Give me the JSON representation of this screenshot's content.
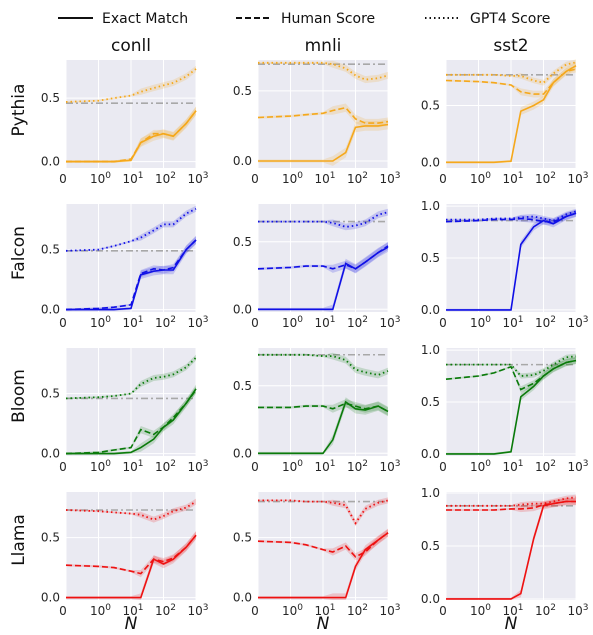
{
  "legend": {
    "exact": "Exact Match",
    "human": "Human Score",
    "gpt4": "GPT4 Score"
  },
  "columns": [
    "conll",
    "mnli",
    "sst2"
  ],
  "rows": [
    "Pythia",
    "Falcon",
    "Bloom",
    "Llama"
  ],
  "xlabel": "N",
  "colors": {
    "Pythia": "#f5a81c",
    "Falcon": "#1010e6",
    "Bloom": "#0a7a0a",
    "Llama": "#ee1111",
    "reference": "#a8a8a8",
    "plot_bg": "#eaeaf2",
    "grid": "#ffffff"
  },
  "chart_data": {
    "type": "line",
    "x": [
      0,
      1,
      3,
      10,
      20,
      50,
      100,
      200,
      500,
      1000
    ],
    "x_scale": "symlog",
    "x_ticks": [
      "0",
      "10^0",
      "10^1",
      "10^2",
      "10^3"
    ],
    "panels": [
      {
        "row": "Pythia",
        "col": "conll",
        "ylim": [
          -0.05,
          0.8
        ],
        "yticks": [
          "0.0",
          "0.5"
        ],
        "ref": 0.46,
        "exact": [
          0.0,
          0.0,
          0.0,
          0.01,
          0.15,
          0.2,
          0.22,
          0.2,
          0.3,
          0.4
        ],
        "human": [
          0.0,
          0.0,
          0.0,
          0.02,
          0.15,
          0.22,
          0.22,
          0.2,
          0.3,
          0.4
        ],
        "gpt4": [
          0.47,
          0.48,
          0.5,
          0.52,
          0.55,
          0.58,
          0.6,
          0.62,
          0.67,
          0.73
        ]
      },
      {
        "row": "Pythia",
        "col": "mnli",
        "ylim": [
          -0.05,
          0.72
        ],
        "yticks": [
          "0.0",
          "0.5"
        ],
        "ref": 0.69,
        "exact": [
          0.0,
          0.0,
          0.0,
          0.0,
          0.0,
          0.06,
          0.24,
          0.25,
          0.25,
          0.26
        ],
        "human": [
          0.31,
          0.32,
          0.33,
          0.34,
          0.36,
          0.38,
          0.3,
          0.27,
          0.27,
          0.28
        ],
        "gpt4": [
          0.7,
          0.7,
          0.7,
          0.7,
          0.69,
          0.66,
          0.61,
          0.58,
          0.59,
          0.61
        ]
      },
      {
        "row": "Pythia",
        "col": "sst2",
        "ylim": [
          -0.05,
          0.9
        ],
        "yticks": [
          "0.0",
          "0.5"
        ],
        "ref": 0.77,
        "exact": [
          0.0,
          0.0,
          0.0,
          0.01,
          0.45,
          0.5,
          0.55,
          0.7,
          0.8,
          0.85
        ],
        "human": [
          0.72,
          0.71,
          0.7,
          0.68,
          0.62,
          0.6,
          0.6,
          0.7,
          0.8,
          0.82
        ],
        "gpt4": [
          0.77,
          0.77,
          0.77,
          0.76,
          0.76,
          0.72,
          0.7,
          0.78,
          0.86,
          0.88
        ]
      },
      {
        "row": "Falcon",
        "col": "conll",
        "ylim": [
          -0.02,
          0.88
        ],
        "yticks": [
          "0.0",
          "0.5"
        ],
        "ref": 0.49,
        "exact": [
          0.0,
          0.0,
          0.0,
          0.01,
          0.29,
          0.32,
          0.33,
          0.33,
          0.5,
          0.58
        ],
        "human": [
          0.0,
          0.01,
          0.02,
          0.04,
          0.3,
          0.34,
          0.33,
          0.35,
          0.5,
          0.58
        ],
        "gpt4": [
          0.49,
          0.5,
          0.53,
          0.57,
          0.6,
          0.66,
          0.71,
          0.71,
          0.8,
          0.84
        ]
      },
      {
        "row": "Falcon",
        "col": "mnli",
        "ylim": [
          -0.02,
          0.78
        ],
        "yticks": [
          "0.0",
          "0.5"
        ],
        "ref": 0.65,
        "exact": [
          0.0,
          0.0,
          0.0,
          0.0,
          0.0,
          0.34,
          0.3,
          0.35,
          0.42,
          0.46
        ],
        "human": [
          0.3,
          0.31,
          0.32,
          0.32,
          0.3,
          0.33,
          0.3,
          0.35,
          0.42,
          0.47
        ],
        "gpt4": [
          0.65,
          0.65,
          0.65,
          0.65,
          0.64,
          0.61,
          0.62,
          0.64,
          0.7,
          0.72
        ]
      },
      {
        "row": "Falcon",
        "col": "sst2",
        "ylim": [
          -0.02,
          1.02
        ],
        "yticks": [
          "0.0",
          "0.5",
          "1.0"
        ],
        "ref": 0.86,
        "exact": [
          0.0,
          0.0,
          0.0,
          0.0,
          0.63,
          0.8,
          0.86,
          0.83,
          0.9,
          0.93
        ],
        "human": [
          0.85,
          0.86,
          0.87,
          0.87,
          0.88,
          0.87,
          0.85,
          0.85,
          0.9,
          0.93
        ],
        "gpt4": [
          0.87,
          0.87,
          0.88,
          0.88,
          0.89,
          0.9,
          0.88,
          0.86,
          0.92,
          0.95
        ]
      },
      {
        "row": "Bloom",
        "col": "conll",
        "ylim": [
          -0.02,
          0.88
        ],
        "yticks": [
          "0.0",
          "0.5"
        ],
        "ref": 0.46,
        "exact": [
          0.0,
          0.0,
          0.0,
          0.01,
          0.05,
          0.12,
          0.22,
          0.28,
          0.42,
          0.54
        ],
        "human": [
          0.0,
          0.01,
          0.03,
          0.05,
          0.2,
          0.16,
          0.22,
          0.3,
          0.42,
          0.53
        ],
        "gpt4": [
          0.46,
          0.47,
          0.48,
          0.5,
          0.58,
          0.63,
          0.64,
          0.66,
          0.72,
          0.8
        ]
      },
      {
        "row": "Bloom",
        "col": "mnli",
        "ylim": [
          -0.02,
          0.78
        ],
        "yticks": [
          "0.0",
          "0.5"
        ],
        "ref": 0.73,
        "exact": [
          0.0,
          0.0,
          0.0,
          0.0,
          0.1,
          0.38,
          0.33,
          0.32,
          0.35,
          0.31
        ],
        "human": [
          0.34,
          0.34,
          0.35,
          0.35,
          0.33,
          0.37,
          0.35,
          0.33,
          0.35,
          0.31
        ],
        "gpt4": [
          0.73,
          0.73,
          0.73,
          0.72,
          0.72,
          0.69,
          0.62,
          0.6,
          0.58,
          0.61
        ]
      },
      {
        "row": "Bloom",
        "col": "sst2",
        "ylim": [
          -0.02,
          1.02
        ],
        "yticks": [
          "0.0",
          "0.5",
          "1.0"
        ],
        "ref": 0.86,
        "exact": [
          0.0,
          0.0,
          0.0,
          0.02,
          0.55,
          0.65,
          0.75,
          0.82,
          0.88,
          0.9
        ],
        "human": [
          0.72,
          0.75,
          0.78,
          0.84,
          0.62,
          0.68,
          0.75,
          0.82,
          0.88,
          0.9
        ],
        "gpt4": [
          0.86,
          0.86,
          0.86,
          0.86,
          0.75,
          0.76,
          0.8,
          0.86,
          0.93,
          0.94
        ]
      },
      {
        "row": "Llama",
        "col": "conll",
        "ylim": [
          -0.02,
          0.88
        ],
        "yticks": [
          "0.0",
          "0.5"
        ],
        "ref": 0.73,
        "exact": [
          0.0,
          0.0,
          0.0,
          0.0,
          0.0,
          0.32,
          0.28,
          0.32,
          0.42,
          0.52
        ],
        "human": [
          0.27,
          0.26,
          0.25,
          0.22,
          0.2,
          0.32,
          0.3,
          0.33,
          0.42,
          0.52
        ],
        "gpt4": [
          0.73,
          0.72,
          0.71,
          0.7,
          0.69,
          0.65,
          0.68,
          0.72,
          0.75,
          0.8
        ]
      },
      {
        "row": "Llama",
        "col": "mnli",
        "ylim": [
          -0.02,
          0.88
        ],
        "yticks": [
          "0.0",
          "0.5"
        ],
        "ref": 0.8,
        "exact": [
          0.0,
          0.0,
          0.0,
          0.0,
          0.0,
          0.0,
          0.26,
          0.4,
          0.48,
          0.54
        ],
        "human": [
          0.47,
          0.46,
          0.44,
          0.4,
          0.38,
          0.43,
          0.34,
          0.38,
          0.48,
          0.54
        ],
        "gpt4": [
          0.81,
          0.81,
          0.8,
          0.8,
          0.79,
          0.77,
          0.62,
          0.74,
          0.79,
          0.81
        ]
      },
      {
        "row": "Llama",
        "col": "sst2",
        "ylim": [
          -0.01,
          1.01
        ],
        "yticks": [
          "0.0",
          "0.5",
          "1.0"
        ],
        "ref": 0.88,
        "exact": [
          0.0,
          0.0,
          0.0,
          0.0,
          0.05,
          0.57,
          0.88,
          0.9,
          0.92,
          0.92
        ],
        "human": [
          0.84,
          0.84,
          0.84,
          0.85,
          0.85,
          0.86,
          0.89,
          0.9,
          0.92,
          0.92
        ],
        "gpt4": [
          0.88,
          0.88,
          0.88,
          0.88,
          0.89,
          0.9,
          0.9,
          0.92,
          0.95,
          0.96
        ]
      }
    ]
  }
}
